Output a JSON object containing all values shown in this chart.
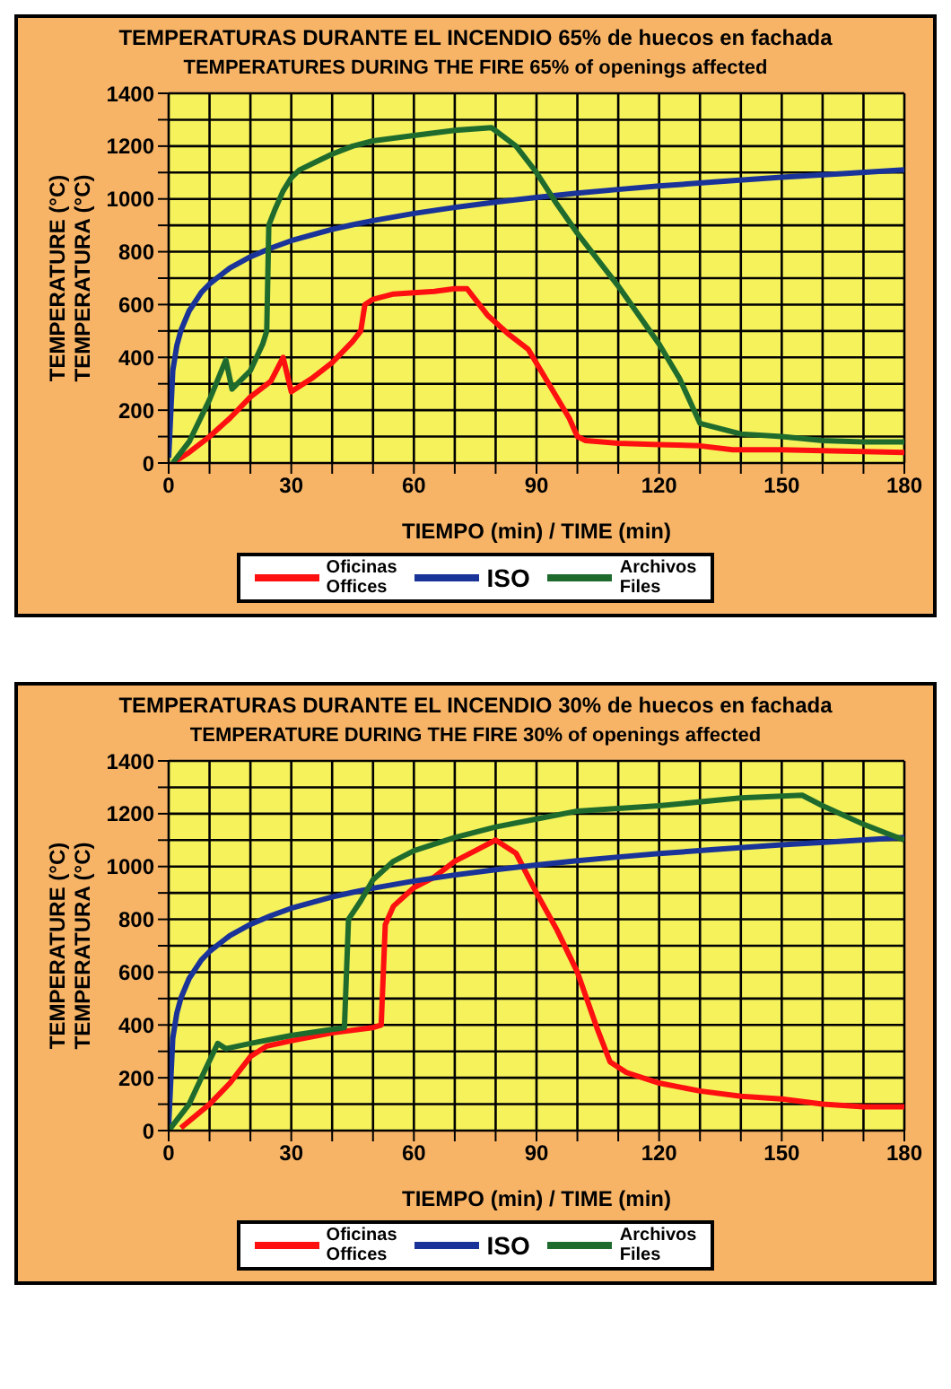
{
  "chart_data": [
    {
      "type": "line",
      "title": "TEMPERATURAS DURANTE EL INCENDIO  65% de huecos en fachada",
      "subtitle": "TEMPERATURES DURING THE FIRE  65% of openings affected",
      "xlabel": "TIEMPO (min) / TIME (min)",
      "ylabel": "TEMPERATURE (°C)\nTEMPERATURA (°C)",
      "xlim": [
        0,
        180
      ],
      "ylim": [
        0,
        1400
      ],
      "xticks": [
        0,
        {
          "value": 10,
          "label": null
        },
        {
          "value": 20,
          "label": null
        },
        30,
        {
          "value": 40,
          "label": null
        },
        {
          "value": 50,
          "label": null
        },
        60,
        {
          "value": 70,
          "label": null
        },
        {
          "value": 80,
          "label": null
        },
        90,
        {
          "value": 100,
          "label": null
        },
        {
          "value": 110,
          "label": null
        },
        120,
        {
          "value": 130,
          "label": null
        },
        {
          "value": 140,
          "label": null
        },
        150,
        {
          "value": 160,
          "label": null
        },
        {
          "value": 170,
          "label": null
        },
        180
      ],
      "yticks": [
        0,
        {
          "value": 100,
          "label": null
        },
        200,
        {
          "value": 300,
          "label": null
        },
        400,
        {
          "value": 500,
          "label": null
        },
        600,
        {
          "value": 700,
          "label": null
        },
        800,
        {
          "value": 900,
          "label": null
        },
        1000,
        {
          "value": 1100,
          "label": null
        },
        1200,
        {
          "value": 1300,
          "label": null
        },
        1400
      ],
      "grid": true,
      "legend": "bottom",
      "marker": "none",
      "line_style": "solid",
      "series": [
        {
          "name": "Oficinas\nOffices",
          "color": "#ff1010",
          "x": [
            1,
            5,
            10,
            15,
            20,
            25,
            28,
            30,
            35,
            40,
            45,
            47,
            48,
            50,
            55,
            60,
            65,
            70,
            73,
            78,
            83,
            88,
            93,
            98,
            100,
            102,
            110,
            120,
            130,
            138,
            150,
            165,
            180
          ],
          "values": [
            0,
            40,
            100,
            170,
            250,
            310,
            400,
            270,
            320,
            380,
            460,
            500,
            600,
            620,
            640,
            645,
            650,
            660,
            660,
            560,
            490,
            430,
            300,
            170,
            100,
            85,
            75,
            70,
            65,
            50,
            50,
            45,
            40
          ]
        },
        {
          "name": "ISO",
          "color": "#1a3399",
          "x": [
            0,
            1,
            2,
            3,
            5,
            8,
            10,
            15,
            20,
            25,
            30,
            40,
            45,
            50,
            60,
            70,
            80,
            90,
            100,
            110,
            120,
            135,
            150,
            165,
            180
          ],
          "values": [
            20,
            349,
            445,
            502,
            576,
            646,
            678,
            739,
            781,
            814,
            842,
            885,
            902,
            918,
            945,
            968,
            988,
            1006,
            1022,
            1036,
            1049,
            1066,
            1082,
            1096,
            1110
          ]
        },
        {
          "name": "Archivos\nFiles",
          "color": "#1f6b2e",
          "x": [
            1,
            5,
            10,
            14,
            15.5,
            20,
            23,
            24,
            24.5,
            26,
            28,
            30,
            32,
            36,
            40,
            45,
            50,
            60,
            70,
            79,
            85,
            90,
            95,
            100,
            110,
            120,
            125,
            130,
            140,
            150,
            160,
            170,
            180
          ],
          "values": [
            0,
            80,
            240,
            390,
            280,
            350,
            450,
            500,
            900,
            960,
            1030,
            1080,
            1110,
            1140,
            1170,
            1200,
            1220,
            1240,
            1260,
            1270,
            1200,
            1100,
            980,
            870,
            670,
            450,
            320,
            150,
            110,
            100,
            85,
            80,
            80
          ]
        }
      ]
    },
    {
      "type": "line",
      "title": "TEMPERATURAS DURANTE EL INCENDIO  30% de huecos en fachada",
      "subtitle": "TEMPERATURE DURING THE FIRE  30% of openings affected",
      "xlabel": "TIEMPO (min) / TIME (min)",
      "ylabel": "TEMPERATURE (°C)\nTEMPERATURA (°C)",
      "xlim": [
        0,
        180
      ],
      "ylim": [
        0,
        1400
      ],
      "xticks": [
        0,
        {
          "value": 10,
          "label": null
        },
        {
          "value": 20,
          "label": null
        },
        30,
        {
          "value": 40,
          "label": null
        },
        {
          "value": 50,
          "label": null
        },
        60,
        {
          "value": 70,
          "label": null
        },
        {
          "value": 80,
          "label": null
        },
        90,
        {
          "value": 100,
          "label": null
        },
        {
          "value": 110,
          "label": null
        },
        120,
        {
          "value": 130,
          "label": null
        },
        {
          "value": 140,
          "label": null
        },
        150,
        {
          "value": 160,
          "label": null
        },
        {
          "value": 170,
          "label": null
        },
        180
      ],
      "yticks": [
        0,
        {
          "value": 100,
          "label": null
        },
        200,
        {
          "value": 300,
          "label": null
        },
        400,
        {
          "value": 500,
          "label": null
        },
        600,
        {
          "value": 700,
          "label": null
        },
        800,
        {
          "value": 900,
          "label": null
        },
        1000,
        {
          "value": 1100,
          "label": null
        },
        1200,
        {
          "value": 1300,
          "label": null
        },
        1400
      ],
      "grid": true,
      "legend": "bottom",
      "marker": "none",
      "line_style": "solid",
      "series": [
        {
          "name": "Oficinas\nOffices",
          "color": "#ff1010",
          "x": [
            3,
            10,
            15,
            20,
            24,
            30,
            40,
            50,
            52,
            53,
            55,
            60,
            65,
            70,
            75,
            80,
            85,
            90,
            95,
            100,
            105,
            108,
            112,
            120,
            130,
            140,
            150,
            160,
            170,
            180
          ],
          "values": [
            10,
            100,
            180,
            280,
            320,
            340,
            370,
            390,
            400,
            780,
            850,
            920,
            960,
            1020,
            1060,
            1100,
            1050,
            900,
            760,
            600,
            380,
            260,
            220,
            180,
            150,
            130,
            120,
            100,
            90,
            90
          ]
        },
        {
          "name": "ISO",
          "color": "#1a3399",
          "x": [
            0,
            1,
            2,
            3,
            5,
            8,
            10,
            15,
            20,
            25,
            30,
            40,
            45,
            50,
            60,
            70,
            80,
            90,
            100,
            110,
            120,
            135,
            150,
            165,
            180
          ],
          "values": [
            20,
            349,
            445,
            502,
            576,
            646,
            678,
            739,
            781,
            814,
            842,
            885,
            902,
            918,
            945,
            968,
            988,
            1006,
            1022,
            1036,
            1049,
            1066,
            1082,
            1096,
            1110
          ]
        },
        {
          "name": "Archivos\nFiles",
          "color": "#1f6b2e",
          "x": [
            0,
            5,
            8,
            12,
            14,
            20,
            30,
            43,
            44,
            47,
            50,
            55,
            60,
            70,
            80,
            90,
            100,
            120,
            140,
            155,
            160,
            170,
            175,
            180
          ],
          "values": [
            0,
            100,
            200,
            330,
            310,
            330,
            360,
            390,
            800,
            870,
            950,
            1020,
            1060,
            1110,
            1150,
            1180,
            1210,
            1230,
            1260,
            1270,
            1230,
            1160,
            1130,
            1100
          ]
        }
      ]
    }
  ]
}
